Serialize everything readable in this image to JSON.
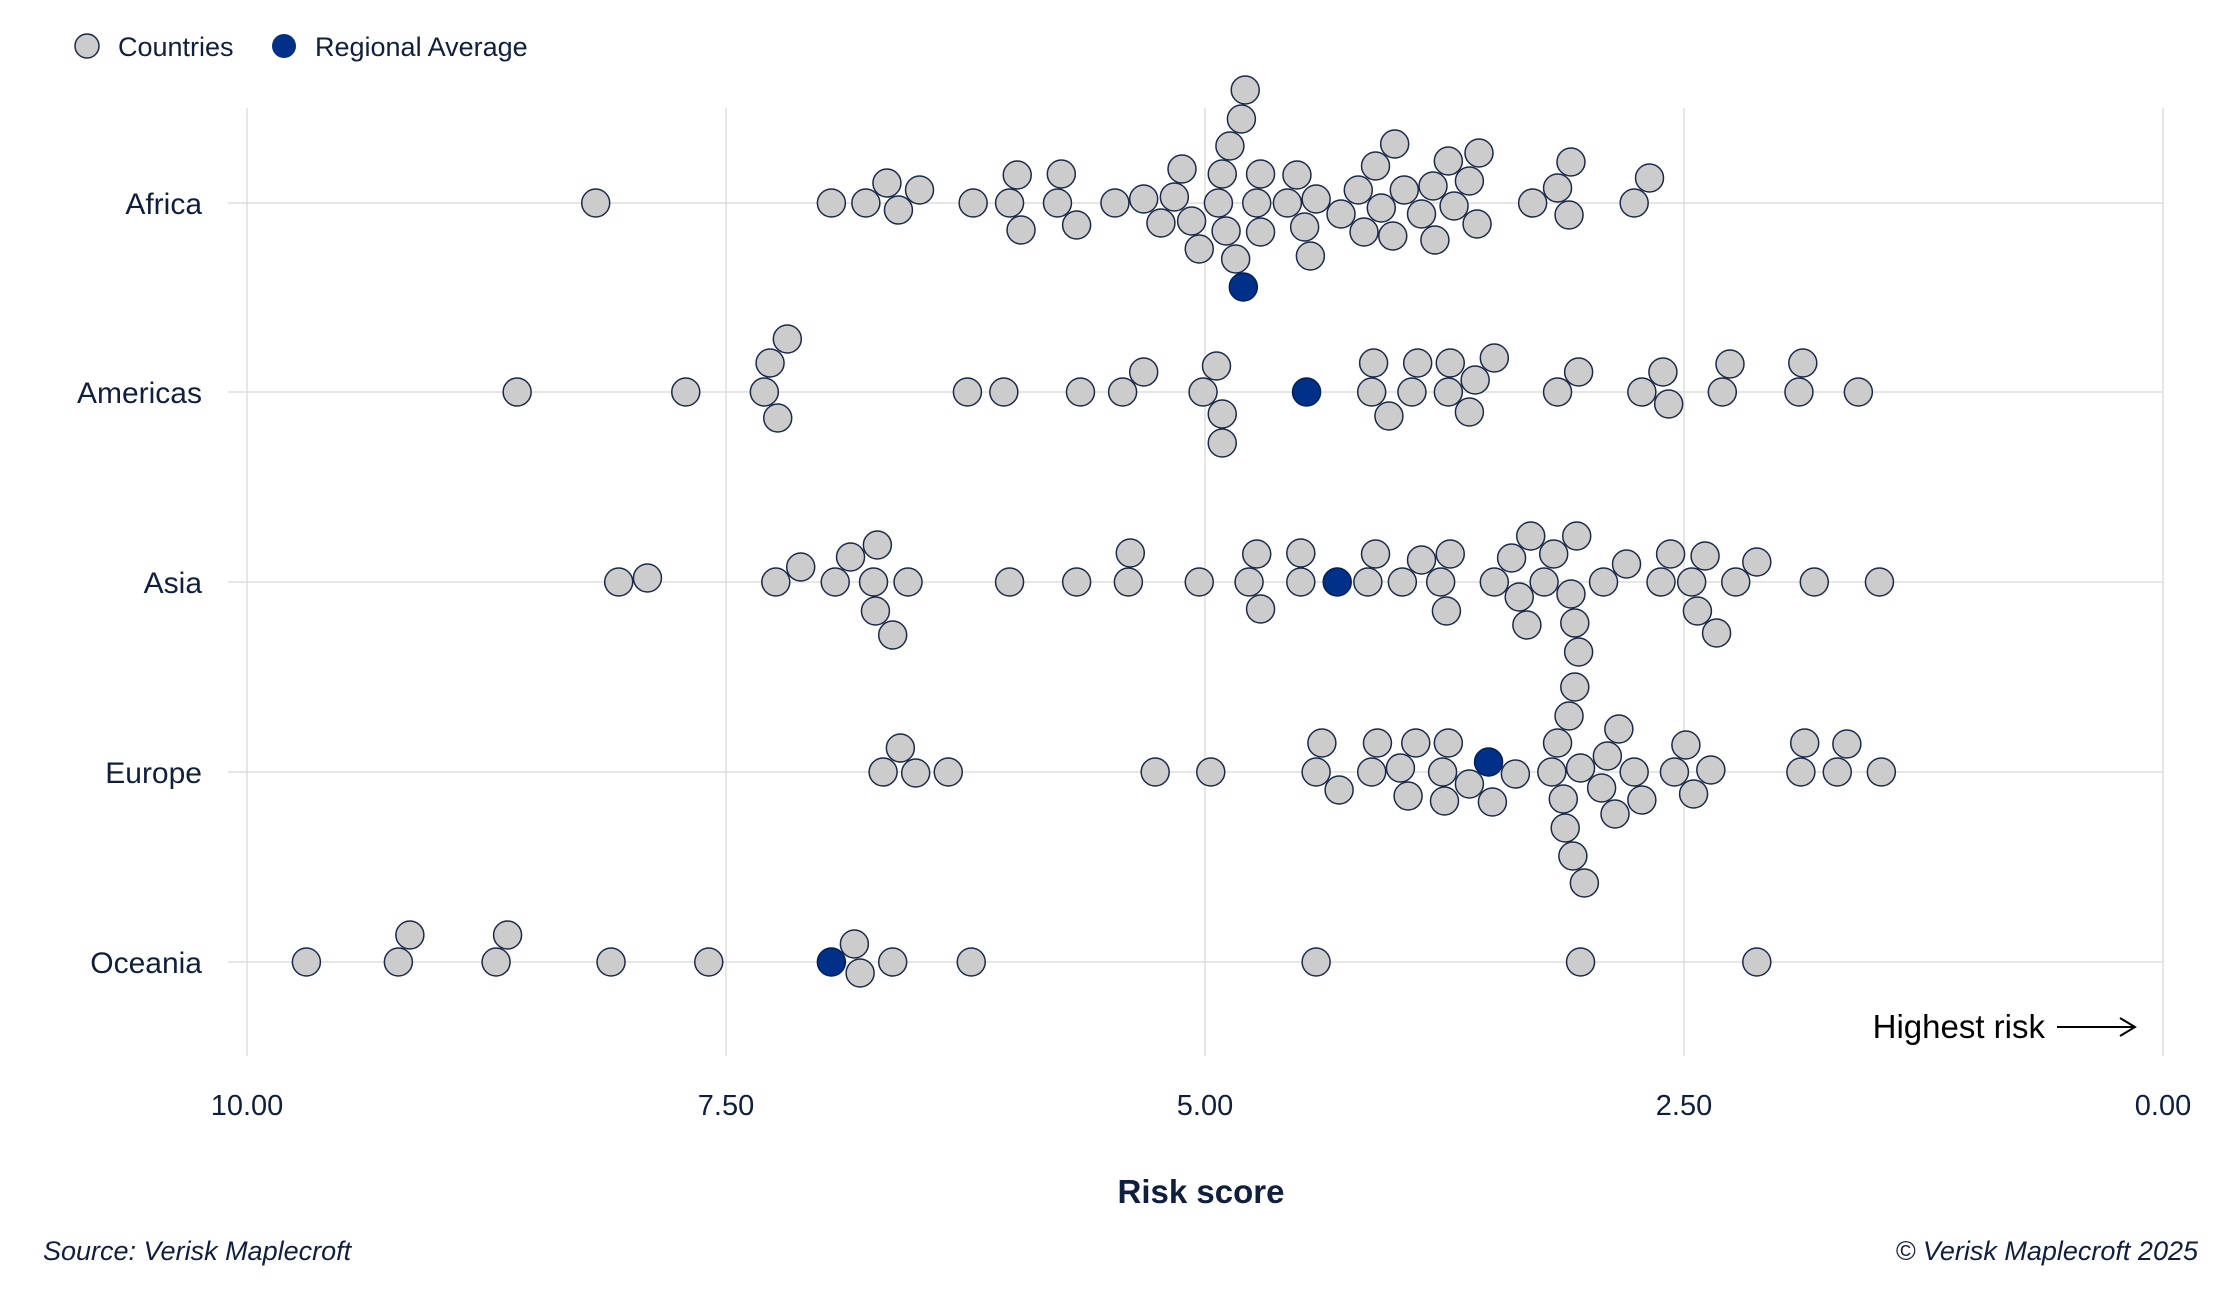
{
  "chart_data": {
    "type": "scatter",
    "subtype": "beeswarm",
    "xlabel": "Risk score",
    "xlim": [
      10,
      0
    ],
    "x_reversed": true,
    "xticks": [
      "10.00",
      "7.50",
      "5.00",
      "2.50",
      "0.00"
    ],
    "xtick_values": [
      10,
      7.5,
      5,
      2.5,
      0
    ],
    "grid": true,
    "legend_placement": "top-left",
    "legend": [
      {
        "name": "Countries",
        "color": "#cccccc"
      },
      {
        "name": "Regional Average",
        "color": "#003087"
      }
    ],
    "annotation": "Highest risk",
    "annotation_icon": "arrow-right-icon",
    "categories": [
      "Africa",
      "Americas",
      "Asia",
      "Europe",
      "Oceania"
    ],
    "series": [
      {
        "name": "Countries",
        "color": "#cccccc",
        "values": {
          "Africa": [
            8.18,
            6.95,
            6.77,
            6.66,
            6.6,
            6.49,
            6.21,
            6.02,
            5.98,
            5.96,
            5.77,
            5.75,
            5.67,
            5.47,
            5.32,
            5.23,
            5.16,
            5.12,
            5.07,
            5.03,
            4.93,
            4.91,
            4.89,
            4.87,
            4.84,
            4.81,
            4.79,
            4.73,
            4.71,
            4.71,
            4.57,
            4.52,
            4.48,
            4.45,
            4.42,
            4.29,
            4.2,
            4.17,
            4.11,
            4.08,
            4.02,
            4.01,
            3.96,
            3.87,
            3.81,
            3.8,
            3.73,
            3.7,
            3.62,
            3.58,
            3.57,
            3.29,
            3.16,
            3.1,
            3.09,
            2.76,
            2.68
          ],
          "Americas": [
            8.59,
            7.71,
            7.3,
            7.27,
            7.23,
            7.18,
            6.24,
            6.05,
            5.65,
            5.43,
            5.32,
            5.01,
            4.94,
            4.91,
            4.91,
            4.13,
            4.12,
            4.04,
            3.92,
            3.89,
            3.73,
            3.72,
            3.62,
            3.59,
            3.49,
            3.16,
            3.05,
            2.72,
            2.61,
            2.58,
            2.3,
            2.26,
            1.9,
            1.88,
            1.59
          ],
          "Asia": [
            8.06,
            7.91,
            7.24,
            7.11,
            6.93,
            6.85,
            6.73,
            6.72,
            6.71,
            6.63,
            6.55,
            6.02,
            5.67,
            5.4,
            5.39,
            5.03,
            4.77,
            4.73,
            4.71,
            4.5,
            4.5,
            4.15,
            4.11,
            3.97,
            3.87,
            3.77,
            3.74,
            3.72,
            3.49,
            3.4,
            3.36,
            3.32,
            3.3,
            3.23,
            3.18,
            3.09,
            3.07,
            3.06,
            3.05,
            2.92,
            2.8,
            2.62,
            2.57,
            2.46,
            2.43,
            2.39,
            2.33,
            2.23,
            2.12,
            1.82,
            1.48
          ],
          "Europe": [
            6.68,
            6.59,
            6.51,
            6.34,
            5.26,
            4.97,
            4.42,
            4.39,
            4.3,
            4.13,
            4.1,
            3.98,
            3.94,
            3.9,
            3.76,
            3.75,
            3.73,
            3.62,
            3.5,
            3.38,
            3.19,
            3.16,
            3.13,
            3.12,
            3.1,
            3.08,
            3.07,
            3.04,
            3.02,
            2.93,
            2.9,
            2.86,
            2.84,
            2.76,
            2.72,
            2.55,
            2.49,
            2.45,
            2.36,
            1.89,
            1.87,
            1.7,
            1.65,
            1.47
          ],
          "Oceania": [
            9.69,
            9.21,
            9.15,
            8.7,
            8.64,
            8.1,
            7.59,
            6.83,
            6.8,
            6.63,
            6.22,
            4.42,
            3.04,
            2.12
          ]
        }
      },
      {
        "name": "Regional Average",
        "color": "#003087",
        "values": {
          "Africa": 4.8,
          "Americas": 4.47,
          "Asia": 4.31,
          "Europe": 3.52,
          "Oceania": 6.95
        }
      }
    ]
  },
  "footer": {
    "source": "Source: Verisk Maplecroft",
    "copyright": "© Verisk Maplecroft 2025"
  }
}
